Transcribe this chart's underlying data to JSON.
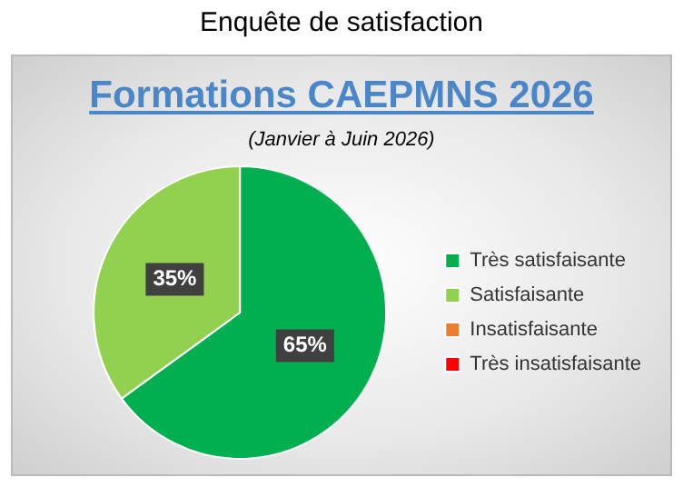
{
  "chart_data": {
    "type": "pie",
    "title": "Enquête de satisfaction",
    "subtitle": "Formations CAEPMNS 2026",
    "annotations": [
      "(Janvier à Juin 2026)"
    ],
    "categories": [
      "Très satisfaisante",
      "Satisfaisante",
      "Insatisfaisante",
      "Très insatisfaisante"
    ],
    "values": [
      65,
      35,
      0,
      0
    ],
    "colors": [
      "#00b050",
      "#92d050",
      "#ed7d31",
      "#ff0000"
    ],
    "value_labels": [
      "65%",
      "35%",
      null,
      null
    ],
    "legend": "right"
  }
}
